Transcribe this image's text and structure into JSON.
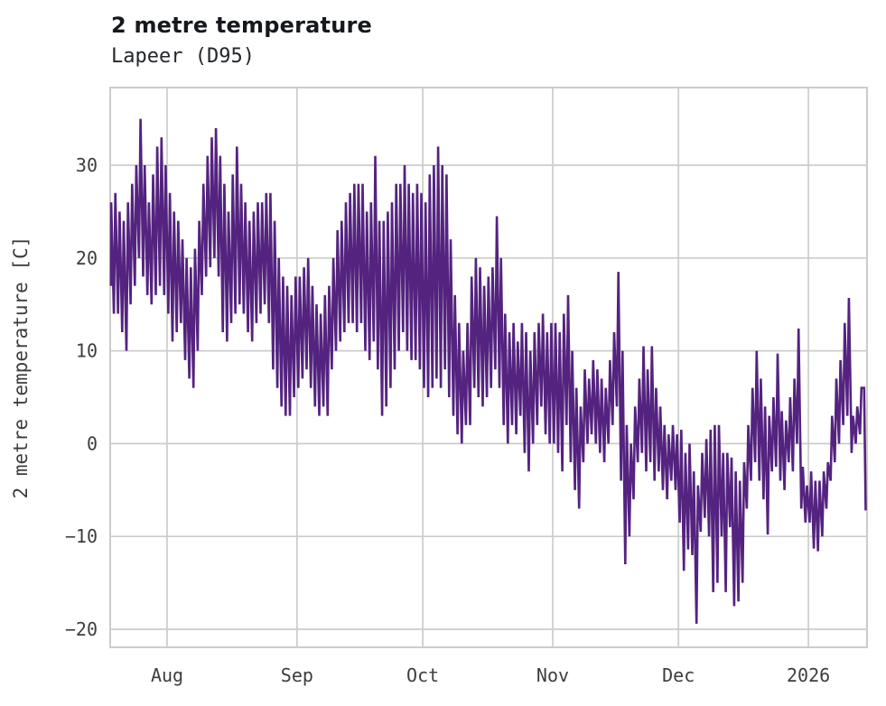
{
  "header": {
    "title": "2 metre temperature",
    "subtitle": "Lapeer (D95)"
  },
  "chart_data": {
    "type": "line",
    "title": "2 metre temperature",
    "subtitle": "Lapeer (D95)",
    "ylabel": "2 metre temperature [C]",
    "xlabel": "",
    "legend": null,
    "grid": true,
    "grid_color": "#cccccc",
    "frame_color": "#cccccc",
    "line_color": "#54237f",
    "background_color": "#ffffff",
    "tick_color": "#3d3d3d",
    "ylim": [
      -22.3,
      38.3
    ],
    "yticks": [
      30,
      20,
      10,
      0,
      -10,
      -20
    ],
    "ytick_labels": [
      "30",
      "20",
      "10",
      "0",
      "−10",
      "−20"
    ],
    "x_start_date": "2025-07-18",
    "x_end_date": "2026-01-14",
    "xticks": [
      {
        "label": "Aug",
        "day": 14
      },
      {
        "label": "Sep",
        "day": 45
      },
      {
        "label": "Oct",
        "day": 75
      },
      {
        "label": "Nov",
        "day": 106
      },
      {
        "label": "Dec",
        "day": 136
      },
      {
        "label": "2026",
        "day": 167
      }
    ],
    "sampling": "two samples per day [early-morning low C, afternoon high C], day 0 = 2025-07-18",
    "daily_pairs": [
      [
        17,
        26
      ],
      [
        14,
        27
      ],
      [
        14,
        25
      ],
      [
        12,
        24
      ],
      [
        10,
        26
      ],
      [
        15,
        28
      ],
      [
        17,
        30
      ],
      [
        20,
        35
      ],
      [
        18,
        30
      ],
      [
        16,
        26
      ],
      [
        15,
        29
      ],
      [
        16,
        32
      ],
      [
        17,
        33
      ],
      [
        16,
        30
      ],
      [
        14,
        27
      ],
      [
        11,
        25
      ],
      [
        12,
        24
      ],
      [
        13,
        22
      ],
      [
        9,
        20
      ],
      [
        7,
        19
      ],
      [
        6,
        21
      ],
      [
        10,
        24
      ],
      [
        16,
        28
      ],
      [
        18,
        31
      ],
      [
        19,
        33
      ],
      [
        20,
        34
      ],
      [
        18,
        31
      ],
      [
        12,
        28
      ],
      [
        11,
        25
      ],
      [
        13,
        29
      ],
      [
        14,
        32
      ],
      [
        15,
        28
      ],
      [
        14,
        26
      ],
      [
        12,
        24
      ],
      [
        11,
        25
      ],
      [
        13,
        26
      ],
      [
        14,
        26
      ],
      [
        15,
        27
      ],
      [
        13,
        27
      ],
      [
        8,
        24
      ],
      [
        6,
        20
      ],
      [
        4,
        18
      ],
      [
        3,
        17
      ],
      [
        3,
        16
      ],
      [
        5,
        18
      ],
      [
        6,
        18
      ],
      [
        7,
        19
      ],
      [
        8,
        20
      ],
      [
        6,
        17
      ],
      [
        4,
        15
      ],
      [
        3,
        14
      ],
      [
        4,
        16
      ],
      [
        3,
        17
      ],
      [
        8,
        20
      ],
      [
        10,
        23
      ],
      [
        11,
        24
      ],
      [
        12,
        26
      ],
      [
        13,
        27
      ],
      [
        13,
        28
      ],
      [
        12,
        28
      ],
      [
        13,
        28
      ],
      [
        10,
        25
      ],
      [
        9,
        26
      ],
      [
        11,
        31
      ],
      [
        8,
        24
      ],
      [
        3,
        24
      ],
      [
        4,
        25
      ],
      [
        6,
        26
      ],
      [
        8,
        28
      ],
      [
        10,
        28
      ],
      [
        12,
        30
      ],
      [
        10,
        28
      ],
      [
        9,
        27
      ],
      [
        9,
        28
      ],
      [
        8,
        27
      ],
      [
        6,
        26
      ],
      [
        5,
        29
      ],
      [
        6,
        30
      ],
      [
        7,
        32
      ],
      [
        6,
        30
      ],
      [
        8,
        29
      ],
      [
        5,
        22
      ],
      [
        3,
        16
      ],
      [
        1,
        13
      ],
      [
        0,
        10
      ],
      [
        2,
        13
      ],
      [
        2,
        18
      ],
      [
        6,
        20
      ],
      [
        5,
        19
      ],
      [
        4,
        17
      ],
      [
        5,
        18
      ],
      [
        6,
        19
      ],
      [
        8,
        24.5
      ],
      [
        6,
        20
      ],
      [
        2,
        14
      ],
      [
        0,
        12
      ],
      [
        2,
        13
      ],
      [
        1,
        11
      ],
      [
        3,
        13
      ],
      [
        -1,
        12
      ],
      [
        -3,
        10
      ],
      [
        0,
        12
      ],
      [
        2,
        13
      ],
      [
        4,
        14
      ],
      [
        1,
        12
      ],
      [
        0,
        13
      ],
      [
        0,
        13
      ],
      [
        -1,
        12
      ],
      [
        -3,
        14
      ],
      [
        2,
        16
      ],
      [
        -2,
        10
      ],
      [
        -5,
        6
      ],
      [
        -7,
        4
      ],
      [
        -2,
        8
      ],
      [
        0,
        7
      ],
      [
        1,
        9
      ],
      [
        0,
        8
      ],
      [
        -1,
        7
      ],
      [
        -2,
        6
      ],
      [
        0,
        9
      ],
      [
        2,
        12
      ],
      [
        4,
        18.5
      ],
      [
        -4,
        10
      ],
      [
        -13,
        2
      ],
      [
        -10,
        0
      ],
      [
        -6,
        4
      ],
      [
        -2,
        7
      ],
      [
        -1,
        10.5
      ],
      [
        -3,
        8
      ],
      [
        -2,
        10.5
      ],
      [
        -4,
        6
      ],
      [
        -3,
        4
      ],
      [
        -5,
        2
      ],
      [
        -6,
        1
      ],
      [
        -4,
        2
      ],
      [
        -5,
        1
      ],
      [
        -8.5,
        1.5
      ],
      [
        -13.7,
        -1
      ],
      [
        -11.4,
        0
      ],
      [
        -12,
        -3
      ],
      [
        -19.4,
        -4.5
      ],
      [
        -9.5,
        -1
      ],
      [
        -8,
        0.5
      ],
      [
        -10,
        1.5
      ],
      [
        -16,
        2
      ],
      [
        -15,
        2
      ],
      [
        -10,
        -1
      ],
      [
        -16,
        -1
      ],
      [
        -9,
        -1.5
      ],
      [
        -17.5,
        -3
      ],
      [
        -17,
        -4
      ],
      [
        -15,
        -2
      ],
      [
        -7,
        2
      ],
      [
        -4,
        6
      ],
      [
        -2,
        10
      ],
      [
        -4,
        7
      ],
      [
        -6,
        4
      ],
      [
        -9.8,
        3
      ],
      [
        -3,
        5
      ],
      [
        -2.5,
        9.7
      ],
      [
        -4,
        3.5
      ],
      [
        -5,
        2.5
      ],
      [
        -2,
        5
      ],
      [
        -3,
        7
      ],
      [
        0,
        12.4
      ],
      [
        -7,
        -2.5
      ],
      [
        -8.5,
        -4.5
      ],
      [
        -8.5,
        -3
      ],
      [
        -11.3,
        -4
      ],
      [
        -11.6,
        -4
      ],
      [
        -10,
        -3
      ],
      [
        -7,
        -2
      ],
      [
        -4,
        3
      ],
      [
        -2,
        7
      ],
      [
        0,
        9
      ],
      [
        2,
        13
      ],
      [
        3,
        15.7
      ],
      [
        -1,
        3
      ],
      [
        0,
        4
      ],
      [
        1,
        6
      ],
      [
        6,
        -7.2
      ]
    ]
  }
}
